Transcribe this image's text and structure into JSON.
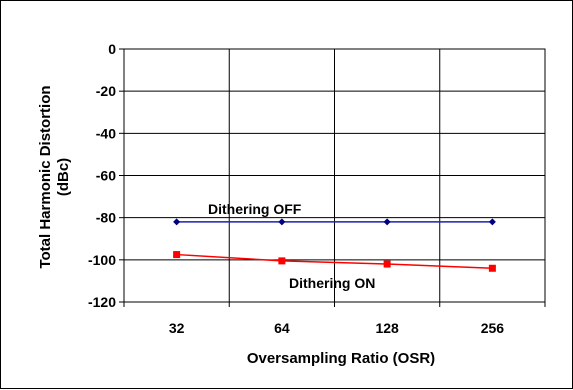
{
  "chart_data": {
    "type": "line",
    "title": "",
    "xlabel": "Oversampling Ratio (OSR)",
    "ylabel_line1": "Total Harmonic Distortion",
    "ylabel_line2": "(dBc)",
    "categories": [
      "32",
      "64",
      "128",
      "256"
    ],
    "ylim": [
      -120,
      0
    ],
    "yticks": [
      "0",
      "-20",
      "-40",
      "-60",
      "-80",
      "-100",
      "-120"
    ],
    "ytick_values": [
      0,
      -20,
      -40,
      -60,
      -80,
      -100,
      -120
    ],
    "grid": true,
    "series": [
      {
        "name": "Dithering OFF",
        "color": "#1f1fb4",
        "marker": "diamond",
        "values": [
          -82,
          -82,
          -82,
          -82
        ]
      },
      {
        "name": "Dithering ON",
        "color": "#ff0000",
        "marker": "square",
        "values": [
          -97.5,
          -100.5,
          -102,
          -104
        ]
      }
    ]
  }
}
